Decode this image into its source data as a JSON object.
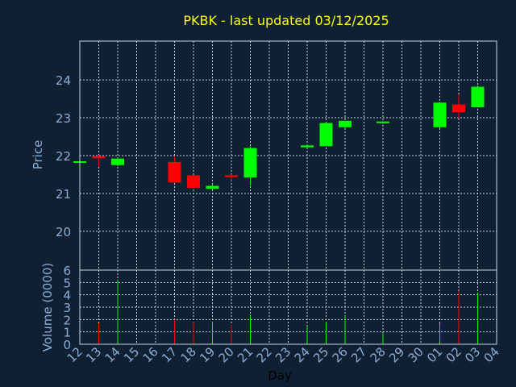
{
  "colors": {
    "background": "#0f2033",
    "frame": "#c8d2dc",
    "grid": "#c8d2dc",
    "title": "#ffff00",
    "axis_text": "#8aaed6",
    "up": "#00ff00",
    "down": "#ff0000"
  },
  "chart_data": {
    "type": "candlestick",
    "title": "PKBK - last updated 03/12/2025",
    "xlabel": "Day",
    "price_panel": {
      "ylabel": "Price",
      "ylim": [
        18.975,
        25.025
      ],
      "yticks": [
        20,
        21,
        22,
        23,
        24
      ],
      "grid": true
    },
    "volume_panel": {
      "ylabel": "Volume (0000)",
      "ylim": [
        0,
        6
      ],
      "yticks": [
        0,
        1,
        2,
        3,
        4,
        5,
        6
      ],
      "grid": true
    },
    "x_tick_labels": [
      "12",
      "13",
      "14",
      "15",
      "16",
      "17",
      "18",
      "19",
      "20",
      "21",
      "22",
      "23",
      "24",
      "25",
      "26",
      "27",
      "28",
      "29",
      "30",
      "01",
      "02",
      "03",
      "04"
    ],
    "candles": [
      {
        "day": "12",
        "open": 21.85,
        "high": 21.87,
        "low": 21.82,
        "close": 21.85,
        "volume": 0.0
      },
      {
        "day": "13",
        "open": 21.98,
        "high": 22.02,
        "low": 21.72,
        "close": 21.93,
        "volume": 1.7
      },
      {
        "day": "14",
        "open": 21.75,
        "high": 21.96,
        "low": 21.72,
        "close": 21.92,
        "volume": 5.2
      },
      {
        "day": "17",
        "open": 21.83,
        "high": 21.98,
        "low": 21.28,
        "close": 21.29,
        "volume": 2.0
      },
      {
        "day": "18",
        "open": 21.48,
        "high": 21.48,
        "low": 21.14,
        "close": 21.15,
        "volume": 1.8
      },
      {
        "day": "19",
        "open": 21.12,
        "high": 21.25,
        "low": 21.1,
        "close": 21.2,
        "volume": 1.8
      },
      {
        "day": "20",
        "open": 21.48,
        "high": 21.5,
        "low": 21.35,
        "close": 21.43,
        "volume": 1.6
      },
      {
        "day": "21",
        "open": 21.42,
        "high": 22.25,
        "low": 21.22,
        "close": 22.2,
        "volume": 2.4
      },
      {
        "day": "24",
        "open": 22.22,
        "high": 22.28,
        "low": 22.2,
        "close": 22.27,
        "volume": 1.4
      },
      {
        "day": "25",
        "open": 22.25,
        "high": 22.88,
        "low": 22.25,
        "close": 22.86,
        "volume": 1.8
      },
      {
        "day": "26",
        "open": 22.75,
        "high": 22.92,
        "low": 22.72,
        "close": 22.92,
        "volume": 2.3
      },
      {
        "day": "28",
        "open": 22.86,
        "high": 22.92,
        "low": 22.84,
        "close": 22.9,
        "volume": 0.9
      },
      {
        "day": "01",
        "open": 22.75,
        "high": 23.42,
        "low": 22.73,
        "close": 23.4,
        "volume": 1.7
      },
      {
        "day": "02",
        "open": 23.35,
        "high": 23.62,
        "low": 22.98,
        "close": 23.15,
        "volume": 4.3
      },
      {
        "day": "03",
        "open": 23.28,
        "high": 23.85,
        "low": 23.27,
        "close": 23.82,
        "volume": 4.2
      }
    ]
  }
}
